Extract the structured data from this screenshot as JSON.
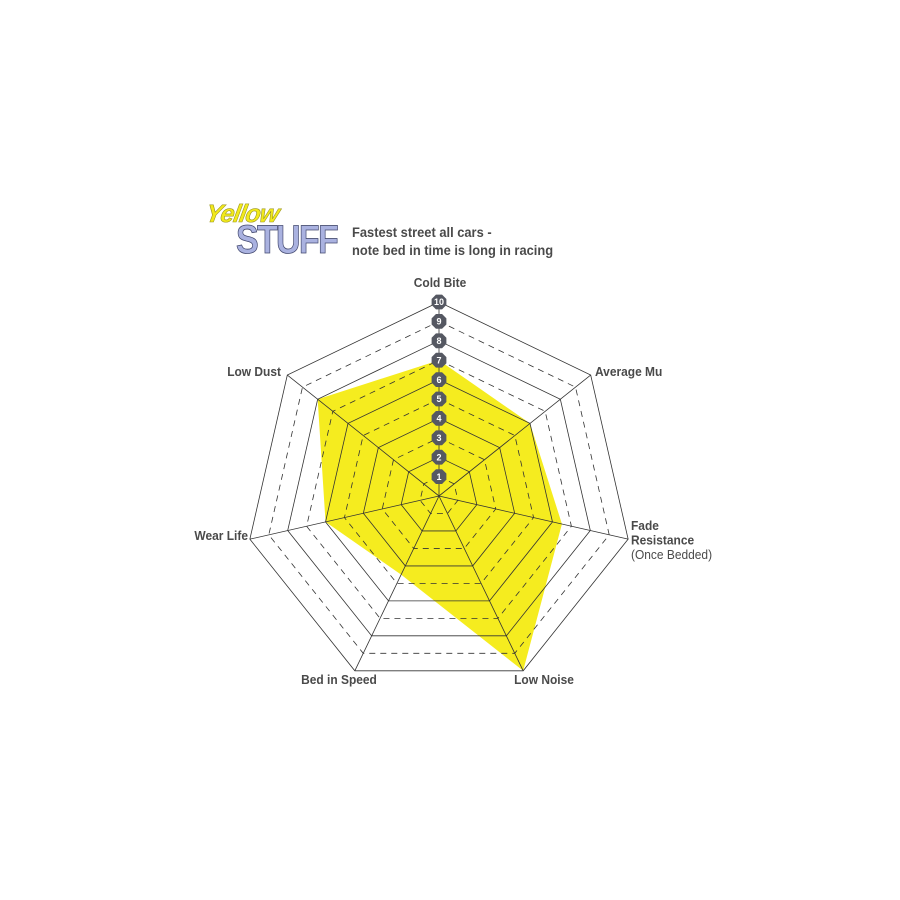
{
  "logo": {
    "line1": "Yellow",
    "line2": "STUFF"
  },
  "subtitle": [
    "Fastest street all cars -",
    "note bed in time is long in racing"
  ],
  "colors": {
    "fill": "#f5ec1f",
    "grid": "#333333",
    "tick_badge": "#555862",
    "text": "#4a4a4a"
  },
  "chart_data": {
    "type": "radar",
    "axes": [
      {
        "label": [
          "Cold Bite"
        ],
        "value": 7
      },
      {
        "label": [
          "Average Mu"
        ],
        "value": 6
      },
      {
        "label": [
          "Fade",
          "Resistance",
          "(Once Bedded)"
        ],
        "value": 6.5
      },
      {
        "label": [
          "Low Noise"
        ],
        "value": 10
      },
      {
        "label": [
          "Bed in Speed"
        ],
        "value": 4.5
      },
      {
        "label": [
          "Wear Life"
        ],
        "value": 6
      },
      {
        "label": [
          "Low Dust"
        ],
        "value": 8
      }
    ],
    "range": [
      0,
      10
    ],
    "ticks": [
      "1",
      "2",
      "3",
      "4",
      "5",
      "6",
      "7",
      "8",
      "9",
      "10"
    ],
    "grid": "solid rings at even values, dashed at odd values"
  }
}
